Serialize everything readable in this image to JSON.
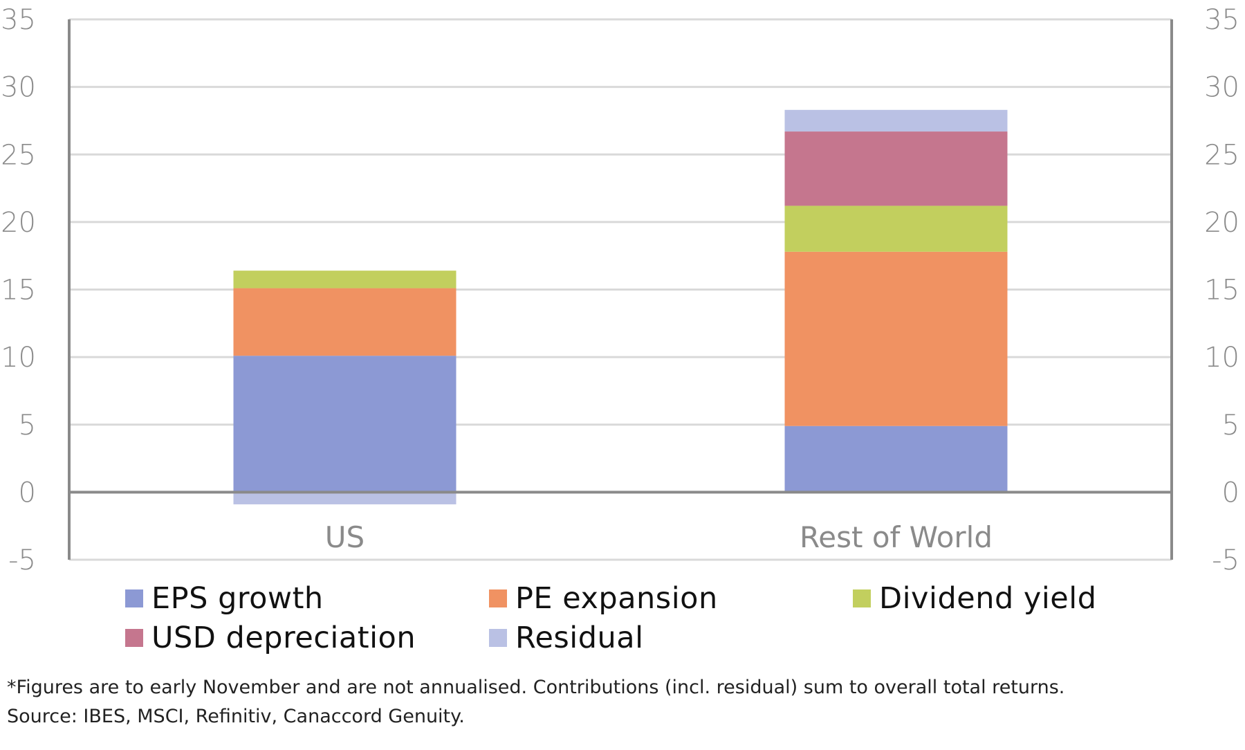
{
  "chart_data": {
    "type": "bar",
    "stacked": true,
    "title": "",
    "xlabel": "",
    "ylabel": "",
    "categories": [
      "US",
      "Rest of World"
    ],
    "series": [
      {
        "name": "EPS growth",
        "color": "#8c99d4",
        "values": [
          10.1,
          4.9
        ]
      },
      {
        "name": "PE expansion",
        "color": "#f09262",
        "values": [
          5.0,
          12.9
        ]
      },
      {
        "name": "Dividend yield",
        "color": "#c2cf5e",
        "values": [
          1.3,
          3.4
        ]
      },
      {
        "name": "USD depreciation",
        "color": "#c5768e",
        "values": [
          0,
          5.5
        ]
      },
      {
        "name": "Residual",
        "color": "#bac1e4",
        "values": [
          -0.9,
          1.6
        ]
      }
    ],
    "ylim": [
      -5,
      35
    ],
    "yticks": [
      35,
      30,
      25,
      20,
      15,
      10,
      5,
      0,
      -5
    ],
    "ytick_labels": [
      "35",
      "30",
      "25",
      "20",
      "15",
      "10",
      "5",
      "0",
      "-5"
    ],
    "secondary_y_axis": true,
    "grid": true,
    "legend_position": "bottom"
  },
  "legend": [
    {
      "label": "EPS growth",
      "color": "#8c99d4"
    },
    {
      "label": "PE expansion",
      "color": "#f09262"
    },
    {
      "label": "Dividend yield",
      "color": "#c2cf5e"
    },
    {
      "label": "USD depreciation",
      "color": "#c5768e"
    },
    {
      "label": "Residual",
      "color": "#bac1e4"
    }
  ],
  "footnotes": {
    "note": "*Figures are to early November and are not annualised. Contributions (incl. residual) sum to overall total returns.",
    "source": "Source: IBES, MSCI, Refinitiv, Canaccord Genuity."
  },
  "colors": {
    "gridline": "#d9d9d9",
    "axis": "#8a8a8a",
    "tick_text": "#8a8a8a"
  }
}
